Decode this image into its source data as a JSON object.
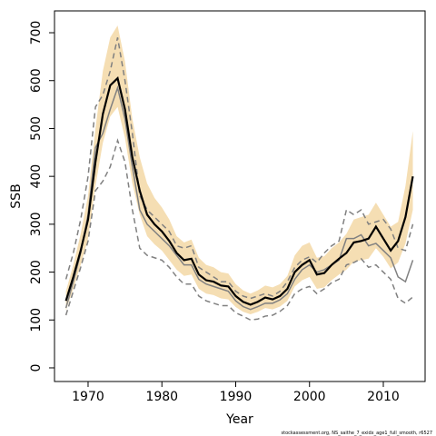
{
  "chart_data": {
    "type": "line",
    "xlabel": "Year",
    "ylabel": "SSB",
    "footnote": "stockassessment.org, NS_saithe_7_exidx_age1_full_smooth, r6527",
    "x": [
      1967,
      1968,
      1969,
      1970,
      1971,
      1972,
      1973,
      1974,
      1975,
      1976,
      1977,
      1978,
      1979,
      1980,
      1981,
      1982,
      1983,
      1984,
      1985,
      1986,
      1987,
      1988,
      1989,
      1990,
      1991,
      1992,
      1993,
      1994,
      1995,
      1996,
      1997,
      1998,
      1999,
      2000,
      2001,
      2002,
      2003,
      2004,
      2005,
      2006,
      2007,
      2008,
      2009,
      2010,
      2011,
      2012,
      2013,
      2014
    ],
    "xlim": [
      1965.45,
      2015.66
    ],
    "xticks": [
      1970,
      1980,
      1990,
      2000,
      2010
    ],
    "ylim": [
      -28.5,
      745.6
    ],
    "yticks": [
      0,
      100,
      200,
      300,
      400,
      500,
      600,
      700
    ],
    "band": {
      "color": "#f5deb3",
      "upper": [
        160,
        215,
        280,
        360,
        500,
        620,
        690,
        715,
        640,
        520,
        440,
        385,
        355,
        335,
        310,
        275,
        262,
        268,
        230,
        215,
        210,
        200,
        197,
        175,
        162,
        155,
        162,
        172,
        168,
        175,
        192,
        235,
        255,
        262,
        230,
        233,
        250,
        262,
        280,
        310,
        315,
        320,
        345,
        320,
        295,
        305,
        380,
        495
      ],
      "lower": [
        120,
        165,
        215,
        270,
        380,
        470,
        525,
        545,
        480,
        385,
        320,
        275,
        258,
        245,
        225,
        205,
        192,
        195,
        165,
        155,
        152,
        145,
        143,
        127,
        117,
        112,
        117,
        125,
        122,
        128,
        140,
        170,
        183,
        190,
        165,
        168,
        183,
        195,
        205,
        222,
        225,
        228,
        250,
        232,
        208,
        220,
        260,
        330
      ]
    },
    "series": [
      {
        "color": "#808080",
        "dash": false,
        "width": 1.5,
        "values": [
          125,
          180,
          240,
          320,
          460,
          490,
          540,
          585,
          520,
          420,
          330,
          300,
          285,
          270,
          255,
          235,
          215,
          215,
          185,
          175,
          170,
          165,
          160,
          140,
          128,
          122,
          128,
          135,
          135,
          142,
          155,
          185,
          205,
          215,
          200,
          205,
          215,
          225,
          270,
          270,
          278,
          255,
          260,
          245,
          230,
          190,
          180,
          225
        ]
      },
      {
        "color": "#808080",
        "dash": true,
        "width": 1.5,
        "values": [
          185,
          240,
          310,
          400,
          545,
          570,
          620,
          690,
          600,
          490,
          360,
          330,
          315,
          300,
          285,
          255,
          250,
          255,
          210,
          200,
          190,
          180,
          180,
          160,
          150,
          145,
          150,
          155,
          150,
          160,
          180,
          210,
          225,
          232,
          220,
          240,
          255,
          265,
          330,
          320,
          330,
          300,
          305,
          310,
          290,
          250,
          245,
          300
        ]
      },
      {
        "color": "#808080",
        "dash": true,
        "width": 1.5,
        "values": [
          110,
          160,
          210,
          265,
          370,
          390,
          420,
          475,
          430,
          330,
          250,
          235,
          230,
          225,
          210,
          190,
          175,
          175,
          150,
          140,
          135,
          130,
          130,
          115,
          108,
          100,
          102,
          108,
          110,
          118,
          130,
          155,
          165,
          170,
          155,
          165,
          178,
          185,
          215,
          220,
          228,
          210,
          215,
          200,
          185,
          145,
          135,
          148
        ]
      },
      {
        "color": "#000000",
        "dash": false,
        "width": 2.2,
        "values": [
          140,
          190,
          245,
          310,
          430,
          530,
          590,
          605,
          540,
          440,
          370,
          320,
          300,
          285,
          265,
          240,
          225,
          228,
          195,
          183,
          180,
          172,
          170,
          150,
          138,
          132,
          138,
          147,
          143,
          150,
          165,
          200,
          215,
          225,
          195,
          198,
          215,
          228,
          240,
          262,
          265,
          270,
          295,
          270,
          245,
          265,
          315,
          400
        ]
      }
    ]
  }
}
